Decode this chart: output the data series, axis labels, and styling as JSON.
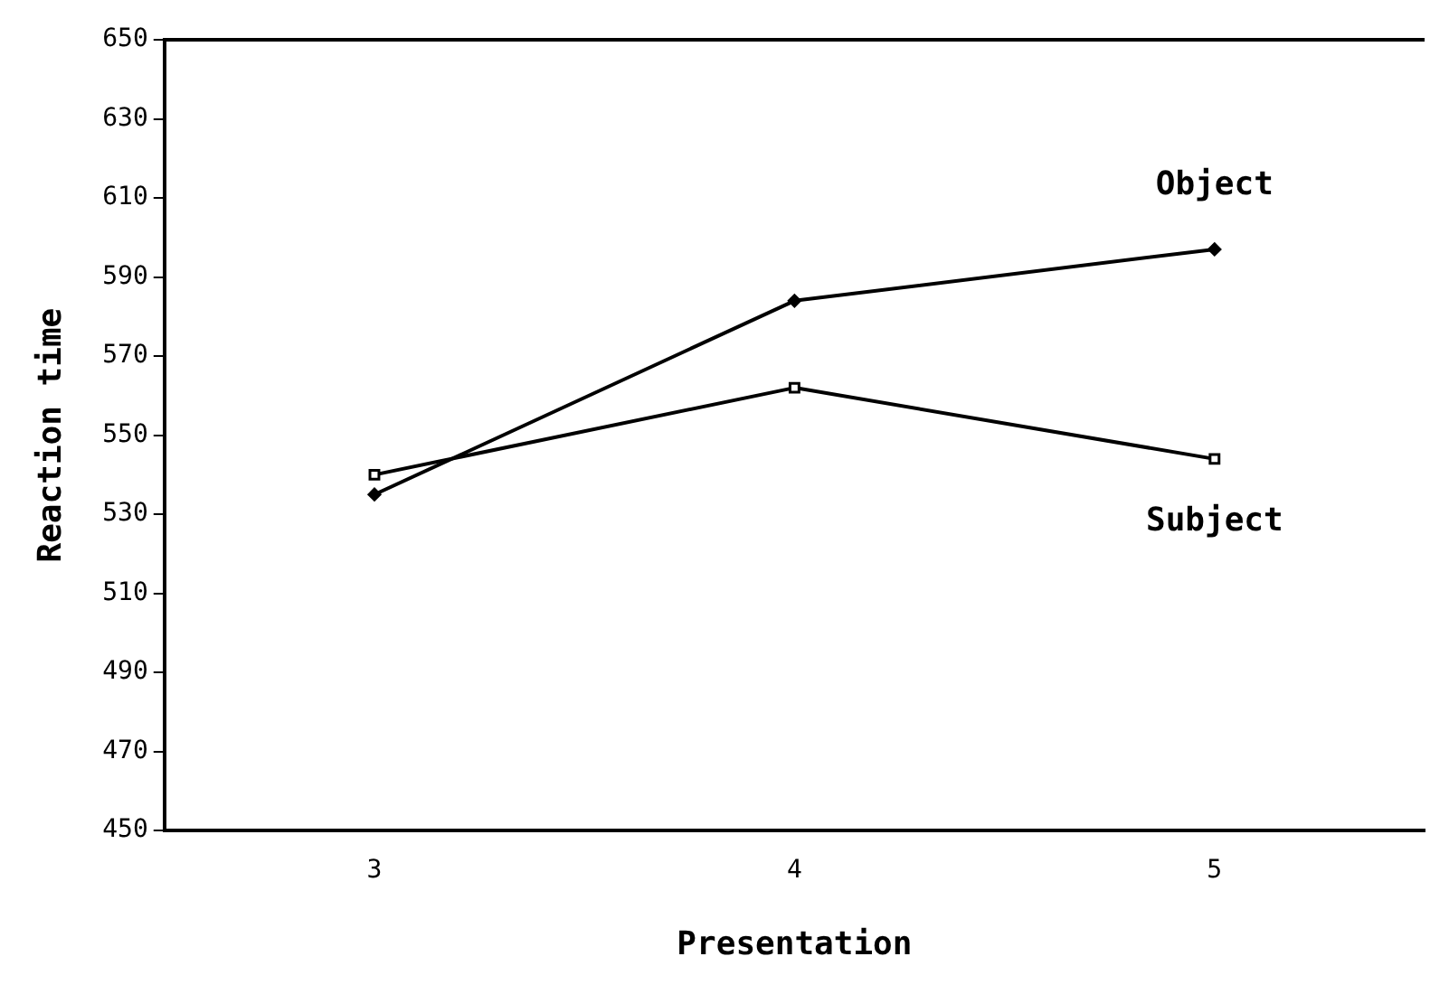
{
  "chart_data": {
    "type": "line",
    "xlabel": "Presentation",
    "ylabel": "Reaction time",
    "x": [
      3,
      4,
      5
    ],
    "xlim": [
      2.5,
      5.5
    ],
    "xticks": [
      3,
      4,
      5
    ],
    "ylim": [
      450,
      650
    ],
    "yticks": [
      450,
      470,
      490,
      510,
      530,
      550,
      570,
      590,
      610,
      630,
      650
    ],
    "series": [
      {
        "name": "Object",
        "color": "#000000",
        "marker": "diamond",
        "values": [
          535,
          584,
          597
        ]
      },
      {
        "name": "Subject",
        "color": "#000000",
        "marker": "square",
        "values": [
          540,
          562,
          544
        ]
      }
    ],
    "grid": false,
    "legend": false,
    "line_style": "solid"
  }
}
